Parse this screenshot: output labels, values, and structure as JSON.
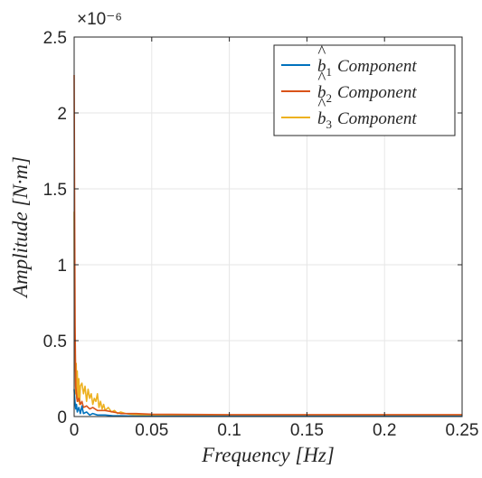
{
  "colors": {
    "series1": "#0072BD",
    "series2": "#D95319",
    "series3": "#EDB120",
    "grid": "#e6e6e6",
    "axis": "#262626"
  },
  "chart_data": {
    "type": "line",
    "title": "",
    "xlabel": "Frequency [Hz]",
    "ylabel": "Amplitude [N·m]",
    "y_exponent_label": "×10⁻⁶",
    "xlim": [
      0,
      0.25
    ],
    "ylim": [
      0,
      2.5
    ],
    "x_ticks": [
      0,
      0.05,
      0.1,
      0.15,
      0.2,
      0.25
    ],
    "x_tick_labels": [
      "0",
      "0.05",
      "0.1",
      "0.15",
      "0.2",
      "0.25"
    ],
    "y_ticks": [
      0,
      0.5,
      1,
      1.5,
      2,
      2.5
    ],
    "y_tick_labels": [
      "0",
      "0.5",
      "1",
      "1.5",
      "2",
      "2.5"
    ],
    "grid": true,
    "legend_position": "top-right",
    "series": [
      {
        "name_base": "b",
        "name_sub": "1",
        "name_suffix": "Component",
        "x": [
          0,
          0.0005,
          0.001,
          0.0015,
          0.002,
          0.003,
          0.004,
          0.005,
          0.006,
          0.008,
          0.01,
          0.012,
          0.015,
          0.02,
          0.025,
          0.03,
          0.04,
          0.05,
          0.1,
          0.15,
          0.2,
          0.25
        ],
        "values": [
          0.18,
          0.1,
          0.05,
          0.08,
          0.03,
          0.06,
          0.02,
          0.07,
          0.02,
          0.03,
          0.01,
          0.02,
          0.01,
          0.01,
          0.005,
          0.005,
          0.003,
          0.002,
          0.002,
          0.002,
          0.002,
          0.002
        ]
      },
      {
        "name_base": "b",
        "name_sub": "2",
        "name_suffix": "Component",
        "x": [
          0,
          0.0003,
          0.0006,
          0.001,
          0.0015,
          0.002,
          0.003,
          0.004,
          0.005,
          0.006,
          0.008,
          0.01,
          0.012,
          0.015,
          0.02,
          0.025,
          0.03,
          0.04,
          0.05,
          0.1,
          0.15,
          0.2,
          0.25
        ],
        "values": [
          2.25,
          1.35,
          0.6,
          0.2,
          0.15,
          0.1,
          0.12,
          0.08,
          0.1,
          0.06,
          0.07,
          0.05,
          0.06,
          0.04,
          0.04,
          0.03,
          0.02,
          0.02,
          0.015,
          0.012,
          0.012,
          0.012,
          0.012
        ]
      },
      {
        "name_base": "b",
        "name_sub": "3",
        "name_suffix": "Component",
        "x": [
          0,
          0.0003,
          0.0006,
          0.001,
          0.0013,
          0.0016,
          0.002,
          0.0025,
          0.003,
          0.0035,
          0.004,
          0.005,
          0.006,
          0.007,
          0.008,
          0.009,
          0.01,
          0.011,
          0.012,
          0.013,
          0.014,
          0.015,
          0.016,
          0.017,
          0.018,
          0.019,
          0.02,
          0.022,
          0.024,
          0.026,
          0.028,
          0.03,
          0.033,
          0.036,
          0.04,
          0.045,
          0.05,
          0.1,
          0.15,
          0.2,
          0.25
        ],
        "values": [
          1.35,
          0.3,
          0.5,
          0.15,
          0.35,
          0.12,
          0.3,
          0.1,
          0.25,
          0.08,
          0.2,
          0.22,
          0.15,
          0.2,
          0.1,
          0.18,
          0.12,
          0.15,
          0.08,
          0.12,
          0.1,
          0.15,
          0.06,
          0.1,
          0.05,
          0.08,
          0.04,
          0.06,
          0.03,
          0.04,
          0.02,
          0.03,
          0.02,
          0.015,
          0.012,
          0.01,
          0.008,
          0.006,
          0.006,
          0.006,
          0.006
        ]
      }
    ]
  }
}
